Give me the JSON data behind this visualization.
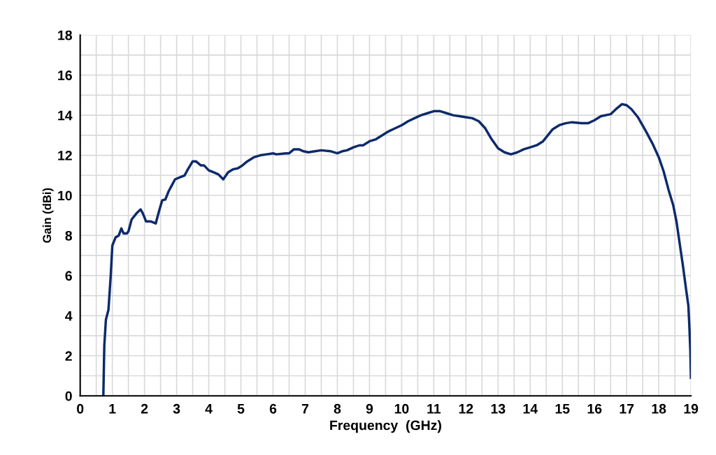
{
  "chart_data": {
    "type": "line",
    "xlabel": "Frequency  (GHz)",
    "ylabel": "Gain (dBi)",
    "x": [
      0.72,
      0.75,
      0.8,
      0.88,
      0.95,
      1.0,
      1.1,
      1.2,
      1.28,
      1.35,
      1.45,
      1.5,
      1.6,
      1.75,
      1.88,
      1.95,
      2.05,
      2.2,
      2.35,
      2.45,
      2.55,
      2.65,
      2.75,
      2.85,
      2.95,
      3.1,
      3.25,
      3.35,
      3.5,
      3.6,
      3.75,
      3.85,
      4.0,
      4.15,
      4.3,
      4.45,
      4.6,
      4.75,
      4.9,
      5.05,
      5.2,
      5.4,
      5.6,
      5.8,
      6.0,
      6.1,
      6.4,
      6.5,
      6.65,
      6.8,
      6.95,
      7.1,
      7.3,
      7.5,
      7.8,
      8.0,
      8.15,
      8.3,
      8.5,
      8.7,
      8.8,
      9.0,
      9.2,
      9.4,
      9.6,
      9.8,
      10.0,
      10.2,
      10.4,
      10.6,
      10.8,
      11.0,
      11.2,
      11.4,
      11.6,
      11.8,
      12.0,
      12.2,
      12.4,
      12.6,
      12.8,
      13.0,
      13.2,
      13.4,
      13.6,
      13.8,
      14.0,
      14.2,
      14.4,
      14.5,
      14.7,
      14.9,
      15.1,
      15.3,
      15.6,
      15.8,
      16.0,
      16.2,
      16.5,
      16.7,
      16.85,
      17.0,
      17.15,
      17.35,
      17.6,
      17.8,
      18.0,
      18.15,
      18.3,
      18.45,
      18.55,
      18.65,
      18.75,
      18.85,
      18.92,
      18.95,
      18.98,
      19.0
    ],
    "series": [
      {
        "color": "#0d2a6b",
        "values": [
          0,
          2.5,
          3.8,
          4.3,
          6,
          7.5,
          7.9,
          8.0,
          8.35,
          8.1,
          8.1,
          8.2,
          8.8,
          9.1,
          9.3,
          9.1,
          8.7,
          8.7,
          8.6,
          9.2,
          9.75,
          9.8,
          10.2,
          10.5,
          10.8,
          10.9,
          11.0,
          11.3,
          11.7,
          11.7,
          11.5,
          11.5,
          11.25,
          11.15,
          11.05,
          10.8,
          11.15,
          11.3,
          11.35,
          11.5,
          11.7,
          11.9,
          12.0,
          12.05,
          12.1,
          12.05,
          12.1,
          12.1,
          12.3,
          12.3,
          12.2,
          12.15,
          12.2,
          12.25,
          12.2,
          12.1,
          12.2,
          12.25,
          12.4,
          12.5,
          12.5,
          12.7,
          12.8,
          13.0,
          13.2,
          13.35,
          13.5,
          13.7,
          13.85,
          14.0,
          14.1,
          14.2,
          14.2,
          14.1,
          14.0,
          13.95,
          13.9,
          13.85,
          13.7,
          13.35,
          12.8,
          12.35,
          12.15,
          12.05,
          12.15,
          12.3,
          12.4,
          12.5,
          12.7,
          12.9,
          13.3,
          13.5,
          13.6,
          13.65,
          13.6,
          13.6,
          13.75,
          13.95,
          14.05,
          14.35,
          14.55,
          14.5,
          14.3,
          13.9,
          13.2,
          12.6,
          11.9,
          11.2,
          10.3,
          9.5,
          8.7,
          7.6,
          6.5,
          5.3,
          4.5,
          3.5,
          2.3,
          0.9
        ]
      }
    ],
    "xlim": [
      0,
      19
    ],
    "ylim": [
      0,
      18
    ],
    "xticks": [
      0,
      {
        "value": 0.5,
        "label": null
      },
      1,
      {
        "value": 1.5,
        "label": null
      },
      2,
      {
        "value": 2.5,
        "label": null
      },
      3,
      {
        "value": 3.5,
        "label": null
      },
      4,
      {
        "value": 4.5,
        "label": null
      },
      5,
      {
        "value": 5.5,
        "label": null
      },
      6,
      {
        "value": 6.5,
        "label": null
      },
      7,
      {
        "value": 7.5,
        "label": null
      },
      8,
      {
        "value": 8.5,
        "label": null
      },
      9,
      {
        "value": 9.5,
        "label": null
      },
      10,
      {
        "value": 10.5,
        "label": null
      },
      11,
      {
        "value": 11.5,
        "label": null
      },
      12,
      {
        "value": 12.5,
        "label": null
      },
      13,
      {
        "value": 13.5,
        "label": null
      },
      14,
      {
        "value": 14.5,
        "label": null
      },
      15,
      {
        "value": 15.5,
        "label": null
      },
      16,
      {
        "value": 16.5,
        "label": null
      },
      17,
      {
        "value": 17.5,
        "label": null
      },
      18,
      {
        "value": 18.5,
        "label": null
      },
      19
    ],
    "yticks": [
      0,
      {
        "value": 1,
        "label": null
      },
      2,
      {
        "value": 3,
        "label": null
      },
      4,
      {
        "value": 5,
        "label": null
      },
      6,
      {
        "value": 7,
        "label": null
      },
      8,
      {
        "value": 9,
        "label": null
      },
      10,
      {
        "value": 11,
        "label": null
      },
      12,
      {
        "value": 13,
        "label": null
      },
      14,
      {
        "value": 15,
        "label": null
      },
      16,
      {
        "value": 17,
        "label": null
      },
      18
    ],
    "grid": true,
    "legend": false,
    "marker": "none",
    "line_style": "solid"
  }
}
